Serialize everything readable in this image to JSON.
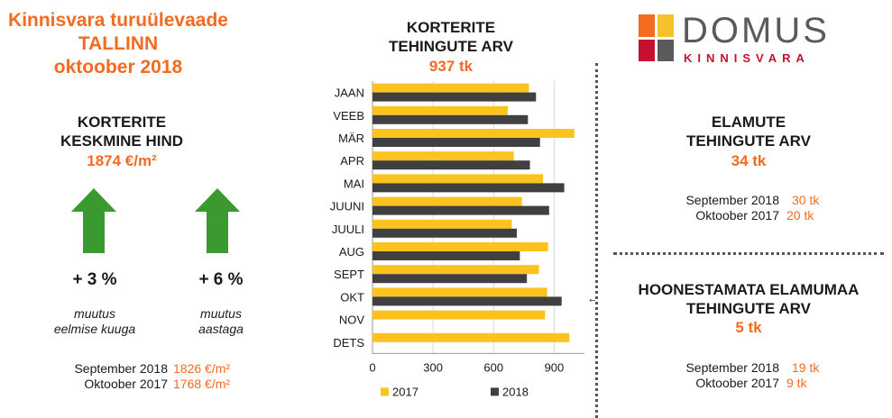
{
  "header": {
    "line1": "Kinnisvara turuülevaade",
    "line2": "TALLINN",
    "line3": "oktoober 2018"
  },
  "price": {
    "title_line1": "KORTERITE",
    "title_line2": "KESKMINE HIND",
    "value": "1874 €/m²",
    "change_month": "+ 3 %",
    "change_year": "+ 6 %",
    "note_month_line1": "muutus",
    "note_month_line2": "eelmise kuuga",
    "note_year_line1": "muutus",
    "note_year_line2": "aastaga",
    "cmp": [
      {
        "label": "September 2018",
        "value": "1826 €/m²"
      },
      {
        "label": "Oktoober 2017",
        "value": "1768 €/m²"
      }
    ],
    "arrow_color": "#3a9a2f"
  },
  "apartments": {
    "title_line1": "KORTERITE",
    "title_line2": "TEHINGUTE ARV",
    "value": "937 tk"
  },
  "logo": {
    "word": "DOMUS",
    "sub": "KINNISVARA",
    "colors": [
      "#f26b21",
      "#f7c12b",
      "#c8102e",
      "#5a5a5a"
    ]
  },
  "houses": {
    "title_line1": "ELAMUTE",
    "title_line2": "TEHINGUTE ARV",
    "value": "34 tk",
    "cmp": [
      {
        "label": "September 2018",
        "value": "30 tk"
      },
      {
        "label": "Oktoober 2017",
        "value": "20 tk"
      }
    ]
  },
  "land": {
    "title_line1": "HOONESTAMATA ELAMUMAA",
    "title_line2": "TEHINGUTE ARV",
    "value": "5 tk",
    "cmp": [
      {
        "label": "September 2018",
        "value": "19 tk"
      },
      {
        "label": "Oktoober 2017",
        "value": "9 tk"
      }
    ]
  },
  "chart_data": {
    "type": "bar",
    "orientation": "horizontal",
    "categories": [
      "JAAN",
      "VEEB",
      "MÄR",
      "APR",
      "MAI",
      "JUUNI",
      "JUULI",
      "AUG",
      "SEPT",
      "OKT",
      "NOV",
      "DETS"
    ],
    "series": [
      {
        "name": "2017",
        "color": "#fcc21e",
        "values": [
          775,
          670,
          1000,
          700,
          845,
          740,
          690,
          870,
          825,
          865,
          855,
          975
        ]
      },
      {
        "name": "2018",
        "color": "#404040",
        "values": [
          810,
          770,
          830,
          780,
          950,
          875,
          715,
          730,
          765,
          937,
          null,
          null
        ]
      }
    ],
    "xlim": [
      0,
      1050
    ],
    "xticks": [
      "0",
      "300",
      "600",
      "900"
    ],
    "grid": true,
    "legend": "bottom",
    "annotation": "←",
    "annotation_color": "#f26b21"
  }
}
